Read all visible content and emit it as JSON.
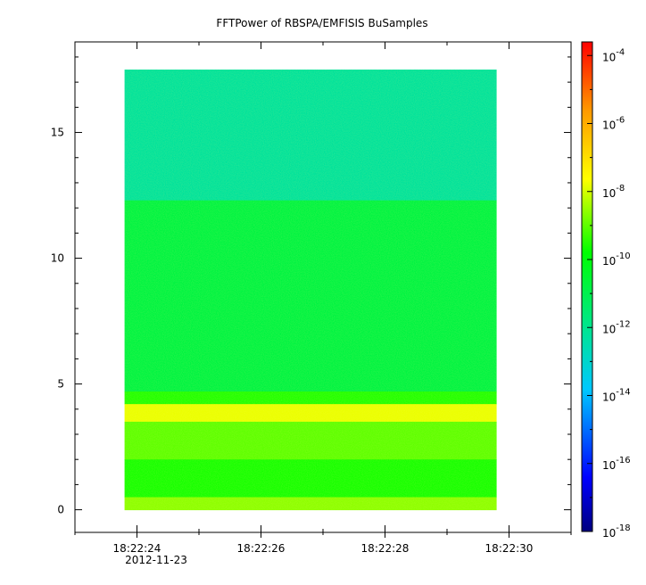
{
  "chart_data": {
    "type": "heatmap",
    "title": "FFTPower of RBSPA/EMFISIS  BuSamples",
    "xlabel": "",
    "ylabel": "",
    "x_tick_labels": [
      "18:22:24",
      "18:22:26",
      "18:22:28",
      "18:22:30"
    ],
    "x_tick_values_seconds": [
      24,
      26,
      28,
      30
    ],
    "x_range_seconds": [
      23.0,
      31.0
    ],
    "x_data_extent_seconds": [
      23.8,
      29.8
    ],
    "x_date_label": "2012-11-23",
    "y_ticks": [
      0,
      5,
      10,
      15
    ],
    "y_range": [
      -0.9,
      18.6
    ],
    "y_data_extent": [
      0,
      17.5
    ],
    "colorbar": {
      "scale": "log",
      "range_exponent": [
        -18,
        -3.6
      ],
      "tick_exponents": [
        -4,
        -6,
        -8,
        -10,
        -12,
        -14,
        -16,
        -18
      ],
      "tick_base": "10"
    },
    "bands": [
      {
        "y": [
          12.3,
          17.5
        ],
        "log_power": -12.2
      },
      {
        "y": [
          4.7,
          12.3
        ],
        "log_power": -10.8
      },
      {
        "y": [
          4.2,
          4.7
        ],
        "log_power": -9.5
      },
      {
        "y": [
          3.5,
          4.2
        ],
        "log_power": -7.8
      },
      {
        "y": [
          2.0,
          3.5
        ],
        "log_power": -9.0
      },
      {
        "y": [
          0.5,
          2.0
        ],
        "log_power": -9.6
      },
      {
        "y": [
          0.0,
          0.5
        ],
        "log_power": -8.6
      }
    ],
    "grid": false
  }
}
